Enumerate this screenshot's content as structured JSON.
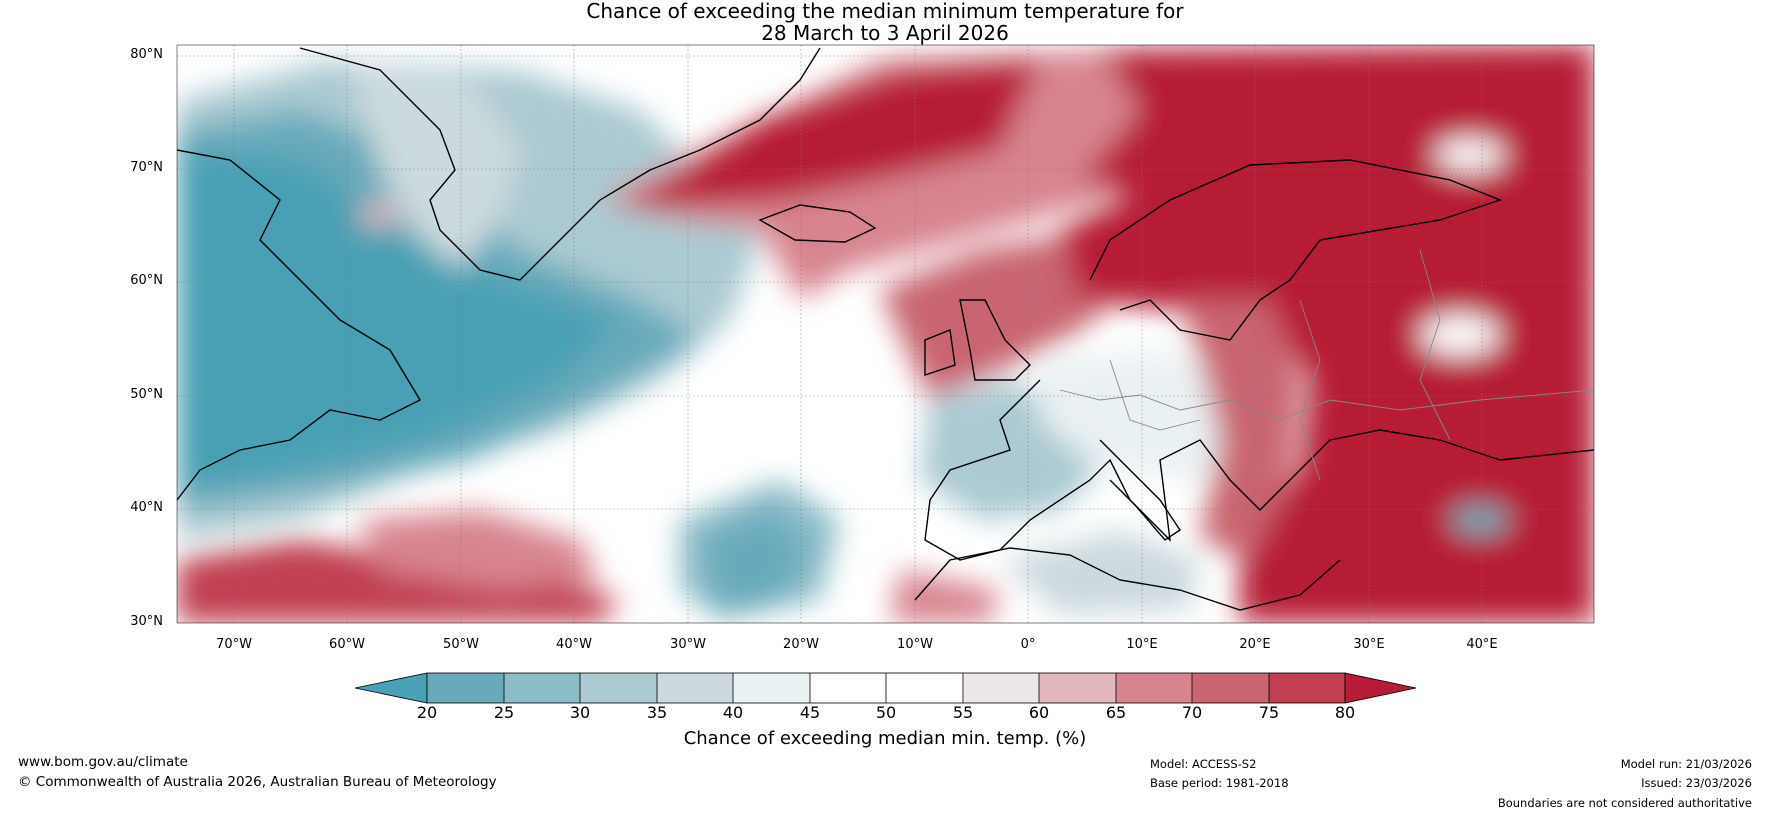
{
  "title": {
    "line1": "Chance of exceeding the median minimum temperature for",
    "line2": "28 March to 3 April 2026"
  },
  "map": {
    "latitude_labels": [
      "80°N",
      "70°N",
      "60°N",
      "50°N",
      "40°N",
      "30°N"
    ],
    "longitude_labels": [
      "70°W",
      "60°W",
      "50°W",
      "40°W",
      "30°W",
      "20°W",
      "10°W",
      "0°",
      "10°E",
      "20°E",
      "30°E",
      "40°E"
    ]
  },
  "colorbar": {
    "title": "Chance of exceeding median min. temp. (%)",
    "tick_labels": [
      "20",
      "25",
      "30",
      "35",
      "40",
      "45",
      "50",
      "55",
      "60",
      "65",
      "70",
      "75",
      "80"
    ],
    "colors": {
      "below_20": "#4aa0b4",
      "20_25": "#68aabb",
      "25_30": "#8bbcc8",
      "30_35": "#abcad2",
      "35_40": "#ccdade",
      "40_45": "#eaf1f3",
      "45_50": "#ffffff",
      "50_55": "#ffffff",
      "55_60": "#ede6e8",
      "60_65": "#e2b7bd",
      "65_70": "#d8848f",
      "70_75": "#c96570",
      "75_80": "#c13f51",
      "above_80": "#b71c36"
    }
  },
  "footer": {
    "website": "www.bom.gov.au/climate",
    "copyright": "© Commonwealth of Australia 2026, Australian Bureau of Meteorology",
    "model": "Model: ACCESS-S2",
    "base_period": "Base period: 1981-2018",
    "model_run": "Model run: 21/03/2026",
    "issued": "Issued: 23/03/2026",
    "disclaimer": "Boundaries are not considered authoritative"
  }
}
